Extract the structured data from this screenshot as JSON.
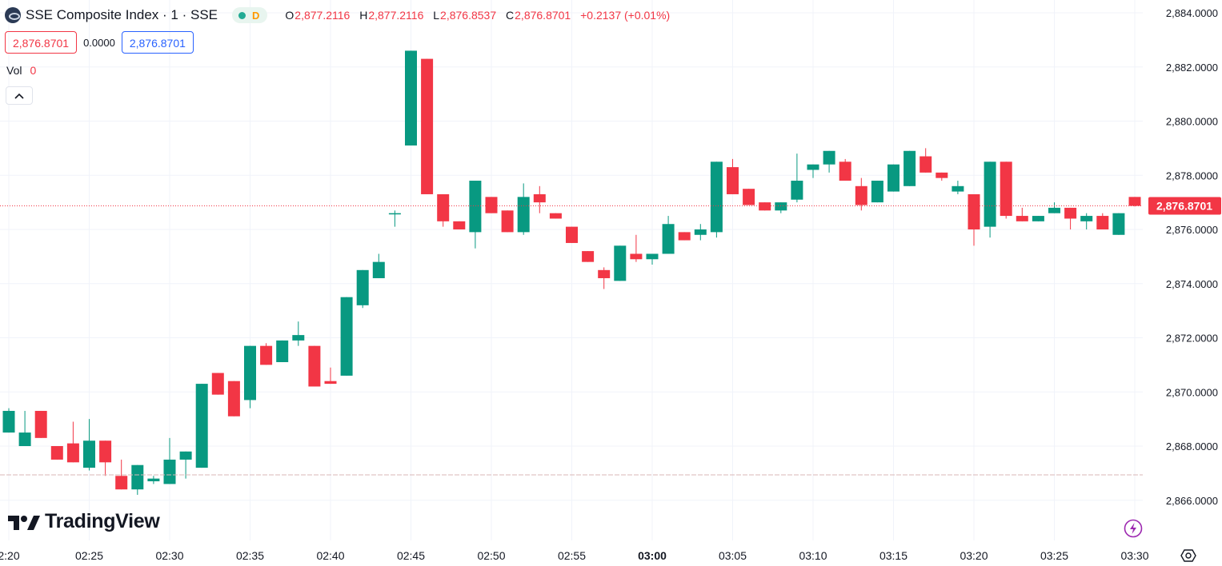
{
  "header": {
    "symbol_title": "SSE Composite Index · 1 · SSE",
    "status_letter": "D",
    "ohlc": {
      "o_label": "O",
      "o_value": "2,877.2116",
      "h_label": "H",
      "h_value": "2,877.2116",
      "l_label": "L",
      "l_value": "2,876.8537",
      "c_label": "C",
      "c_value": "2,876.8701",
      "change": "+0.2137 (+0.01%)"
    }
  },
  "trade": {
    "sell_price": "2,876.8701",
    "spread": "0.0000",
    "buy_price": "2,876.8701"
  },
  "volume": {
    "label": "Vol",
    "value": "0"
  },
  "branding": {
    "logo_text": "TradingView"
  },
  "colors": {
    "up": "#089981",
    "down": "#f23645",
    "grid": "#f0f3fa",
    "price_line": "#f23645"
  },
  "chart_data": {
    "type": "candlestick",
    "y_ticks": [
      "2,884.0000",
      "2,882.0000",
      "2,880.0000",
      "2,878.0000",
      "2,876.0000",
      "2,874.0000",
      "2,872.0000",
      "2,870.0000",
      "2,868.0000",
      "2,866.0000"
    ],
    "y_tick_values": [
      2884,
      2882,
      2880,
      2878,
      2876,
      2874,
      2872,
      2870,
      2868,
      2866
    ],
    "ylim": [
      2865.0,
      2884.4
    ],
    "x_labels": [
      "2:20",
      "02:25",
      "02:30",
      "02:35",
      "02:40",
      "02:45",
      "02:50",
      "02:55",
      "03:00",
      "03:05",
      "03:10",
      "03:15",
      "03:20",
      "03:25",
      "03:30"
    ],
    "x_label_minutes": [
      0,
      5,
      10,
      15,
      20,
      25,
      30,
      35,
      40,
      45,
      50,
      55,
      60,
      65,
      70
    ],
    "bold_x_label": "03:00",
    "last_price": 2876.8701,
    "last_price_label": "2,876.8701",
    "candles": [
      {
        "t": 0,
        "o": 2868.5,
        "h": 2869.4,
        "l": 2868.5,
        "c": 2869.3
      },
      {
        "t": 1,
        "o": 2868.0,
        "h": 2869.3,
        "l": 2868.0,
        "c": 2868.5
      },
      {
        "t": 2,
        "o": 2869.3,
        "h": 2869.3,
        "l": 2868.3,
        "c": 2868.3
      },
      {
        "t": 3,
        "o": 2868.0,
        "h": 2868.0,
        "l": 2867.5,
        "c": 2867.5
      },
      {
        "t": 4,
        "o": 2868.1,
        "h": 2868.9,
        "l": 2867.4,
        "c": 2867.4
      },
      {
        "t": 5,
        "o": 2867.2,
        "h": 2869.0,
        "l": 2867.1,
        "c": 2868.2
      },
      {
        "t": 6,
        "o": 2868.2,
        "h": 2868.2,
        "l": 2866.9,
        "c": 2867.4
      },
      {
        "t": 7,
        "o": 2866.9,
        "h": 2867.5,
        "l": 2866.4,
        "c": 2866.4
      },
      {
        "t": 8,
        "o": 2866.4,
        "h": 2867.3,
        "l": 2866.2,
        "c": 2867.3
      },
      {
        "t": 9,
        "o": 2866.7,
        "h": 2866.9,
        "l": 2866.6,
        "c": 2866.8
      },
      {
        "t": 10,
        "o": 2866.6,
        "h": 2868.3,
        "l": 2866.6,
        "c": 2867.5
      },
      {
        "t": 11,
        "o": 2867.5,
        "h": 2867.8,
        "l": 2866.8,
        "c": 2867.8
      },
      {
        "t": 12,
        "o": 2867.2,
        "h": 2870.3,
        "l": 2867.2,
        "c": 2870.3
      },
      {
        "t": 13,
        "o": 2870.7,
        "h": 2870.7,
        "l": 2869.9,
        "c": 2869.9
      },
      {
        "t": 14,
        "o": 2870.4,
        "h": 2870.4,
        "l": 2869.1,
        "c": 2869.1
      },
      {
        "t": 15,
        "o": 2869.7,
        "h": 2871.7,
        "l": 2869.4,
        "c": 2871.7
      },
      {
        "t": 16,
        "o": 2871.7,
        "h": 2871.8,
        "l": 2871.0,
        "c": 2871.0
      },
      {
        "t": 17,
        "o": 2871.1,
        "h": 2871.9,
        "l": 2871.1,
        "c": 2871.9
      },
      {
        "t": 18,
        "o": 2871.9,
        "h": 2872.6,
        "l": 2871.7,
        "c": 2872.1
      },
      {
        "t": 19,
        "o": 2871.7,
        "h": 2871.7,
        "l": 2870.2,
        "c": 2870.2
      },
      {
        "t": 20,
        "o": 2870.4,
        "h": 2870.9,
        "l": 2870.3,
        "c": 2870.3
      },
      {
        "t": 21,
        "o": 2870.6,
        "h": 2873.5,
        "l": 2870.6,
        "c": 2873.5
      },
      {
        "t": 22,
        "o": 2873.2,
        "h": 2874.5,
        "l": 2873.1,
        "c": 2874.5
      },
      {
        "t": 23,
        "o": 2874.2,
        "h": 2875.1,
        "l": 2874.2,
        "c": 2874.8
      },
      {
        "t": 24,
        "o": 2876.6,
        "h": 2876.7,
        "l": 2876.1,
        "c": 2876.6
      },
      {
        "t": 25,
        "o": 2879.1,
        "h": 2882.6,
        "l": 2879.1,
        "c": 2882.6
      },
      {
        "t": 26,
        "o": 2882.3,
        "h": 2882.3,
        "l": 2877.3,
        "c": 2877.3
      },
      {
        "t": 27,
        "o": 2877.3,
        "h": 2877.3,
        "l": 2876.1,
        "c": 2876.3
      },
      {
        "t": 28,
        "o": 2876.3,
        "h": 2876.3,
        "l": 2876.0,
        "c": 2876.0
      },
      {
        "t": 29,
        "o": 2875.9,
        "h": 2877.8,
        "l": 2875.3,
        "c": 2877.8
      },
      {
        "t": 30,
        "o": 2877.2,
        "h": 2877.2,
        "l": 2876.6,
        "c": 2876.6
      },
      {
        "t": 31,
        "o": 2876.7,
        "h": 2876.7,
        "l": 2875.9,
        "c": 2875.9
      },
      {
        "t": 32,
        "o": 2875.9,
        "h": 2877.7,
        "l": 2875.8,
        "c": 2877.2
      },
      {
        "t": 33,
        "o": 2877.3,
        "h": 2877.6,
        "l": 2876.6,
        "c": 2877.0
      },
      {
        "t": 34,
        "o": 2876.6,
        "h": 2876.6,
        "l": 2876.4,
        "c": 2876.4
      },
      {
        "t": 35,
        "o": 2876.1,
        "h": 2876.1,
        "l": 2875.5,
        "c": 2875.5
      },
      {
        "t": 36,
        "o": 2875.2,
        "h": 2875.2,
        "l": 2874.8,
        "c": 2874.8
      },
      {
        "t": 37,
        "o": 2874.5,
        "h": 2874.6,
        "l": 2873.8,
        "c": 2874.2
      },
      {
        "t": 38,
        "o": 2874.1,
        "h": 2875.4,
        "l": 2874.1,
        "c": 2875.4
      },
      {
        "t": 39,
        "o": 2875.1,
        "h": 2875.8,
        "l": 2874.8,
        "c": 2874.9
      },
      {
        "t": 40,
        "o": 2874.9,
        "h": 2875.1,
        "l": 2874.7,
        "c": 2875.1
      },
      {
        "t": 41,
        "o": 2875.1,
        "h": 2876.5,
        "l": 2875.1,
        "c": 2876.2
      },
      {
        "t": 42,
        "o": 2875.9,
        "h": 2875.9,
        "l": 2875.6,
        "c": 2875.6
      },
      {
        "t": 43,
        "o": 2875.8,
        "h": 2876.2,
        "l": 2875.6,
        "c": 2876.0
      },
      {
        "t": 44,
        "o": 2875.9,
        "h": 2878.5,
        "l": 2875.7,
        "c": 2878.5
      },
      {
        "t": 45,
        "o": 2878.3,
        "h": 2878.6,
        "l": 2877.3,
        "c": 2877.3
      },
      {
        "t": 46,
        "o": 2877.5,
        "h": 2877.5,
        "l": 2876.9,
        "c": 2876.9
      },
      {
        "t": 47,
        "o": 2877.0,
        "h": 2877.0,
        "l": 2876.7,
        "c": 2876.7
      },
      {
        "t": 48,
        "o": 2876.7,
        "h": 2877.0,
        "l": 2876.6,
        "c": 2877.0
      },
      {
        "t": 49,
        "o": 2877.1,
        "h": 2878.8,
        "l": 2877.0,
        "c": 2877.8
      },
      {
        "t": 50,
        "o": 2878.2,
        "h": 2878.4,
        "l": 2877.9,
        "c": 2878.4
      },
      {
        "t": 51,
        "o": 2878.4,
        "h": 2878.9,
        "l": 2878.1,
        "c": 2878.9
      },
      {
        "t": 52,
        "o": 2878.5,
        "h": 2878.6,
        "l": 2877.8,
        "c": 2877.8
      },
      {
        "t": 53,
        "o": 2877.6,
        "h": 2877.9,
        "l": 2876.7,
        "c": 2876.9
      },
      {
        "t": 54,
        "o": 2877.0,
        "h": 2877.8,
        "l": 2877.0,
        "c": 2877.8
      },
      {
        "t": 55,
        "o": 2877.4,
        "h": 2878.4,
        "l": 2877.4,
        "c": 2878.4
      },
      {
        "t": 56,
        "o": 2877.6,
        "h": 2878.9,
        "l": 2877.6,
        "c": 2878.9
      },
      {
        "t": 57,
        "o": 2878.7,
        "h": 2879.0,
        "l": 2878.1,
        "c": 2878.1
      },
      {
        "t": 58,
        "o": 2878.1,
        "h": 2878.1,
        "l": 2877.8,
        "c": 2877.9
      },
      {
        "t": 59,
        "o": 2877.4,
        "h": 2877.8,
        "l": 2877.3,
        "c": 2877.6
      },
      {
        "t": 60,
        "o": 2877.3,
        "h": 2877.3,
        "l": 2875.4,
        "c": 2876.0
      },
      {
        "t": 61,
        "o": 2876.1,
        "h": 2878.5,
        "l": 2875.7,
        "c": 2878.5
      },
      {
        "t": 62,
        "o": 2878.5,
        "h": 2878.5,
        "l": 2876.4,
        "c": 2876.5
      },
      {
        "t": 63,
        "o": 2876.5,
        "h": 2876.8,
        "l": 2876.3,
        "c": 2876.3
      },
      {
        "t": 64,
        "o": 2876.3,
        "h": 2876.5,
        "l": 2876.3,
        "c": 2876.5
      },
      {
        "t": 65,
        "o": 2876.6,
        "h": 2877.0,
        "l": 2876.6,
        "c": 2876.8
      },
      {
        "t": 66,
        "o": 2876.8,
        "h": 2876.8,
        "l": 2876.0,
        "c": 2876.4
      },
      {
        "t": 67,
        "o": 2876.3,
        "h": 2876.6,
        "l": 2876.0,
        "c": 2876.5
      },
      {
        "t": 68,
        "o": 2876.5,
        "h": 2876.6,
        "l": 2876.0,
        "c": 2876.0
      },
      {
        "t": 69,
        "o": 2875.8,
        "h": 2876.6,
        "l": 2875.8,
        "c": 2876.6
      },
      {
        "t": 70,
        "o": 2877.2,
        "h": 2877.2,
        "l": 2876.85,
        "c": 2876.87
      }
    ]
  }
}
